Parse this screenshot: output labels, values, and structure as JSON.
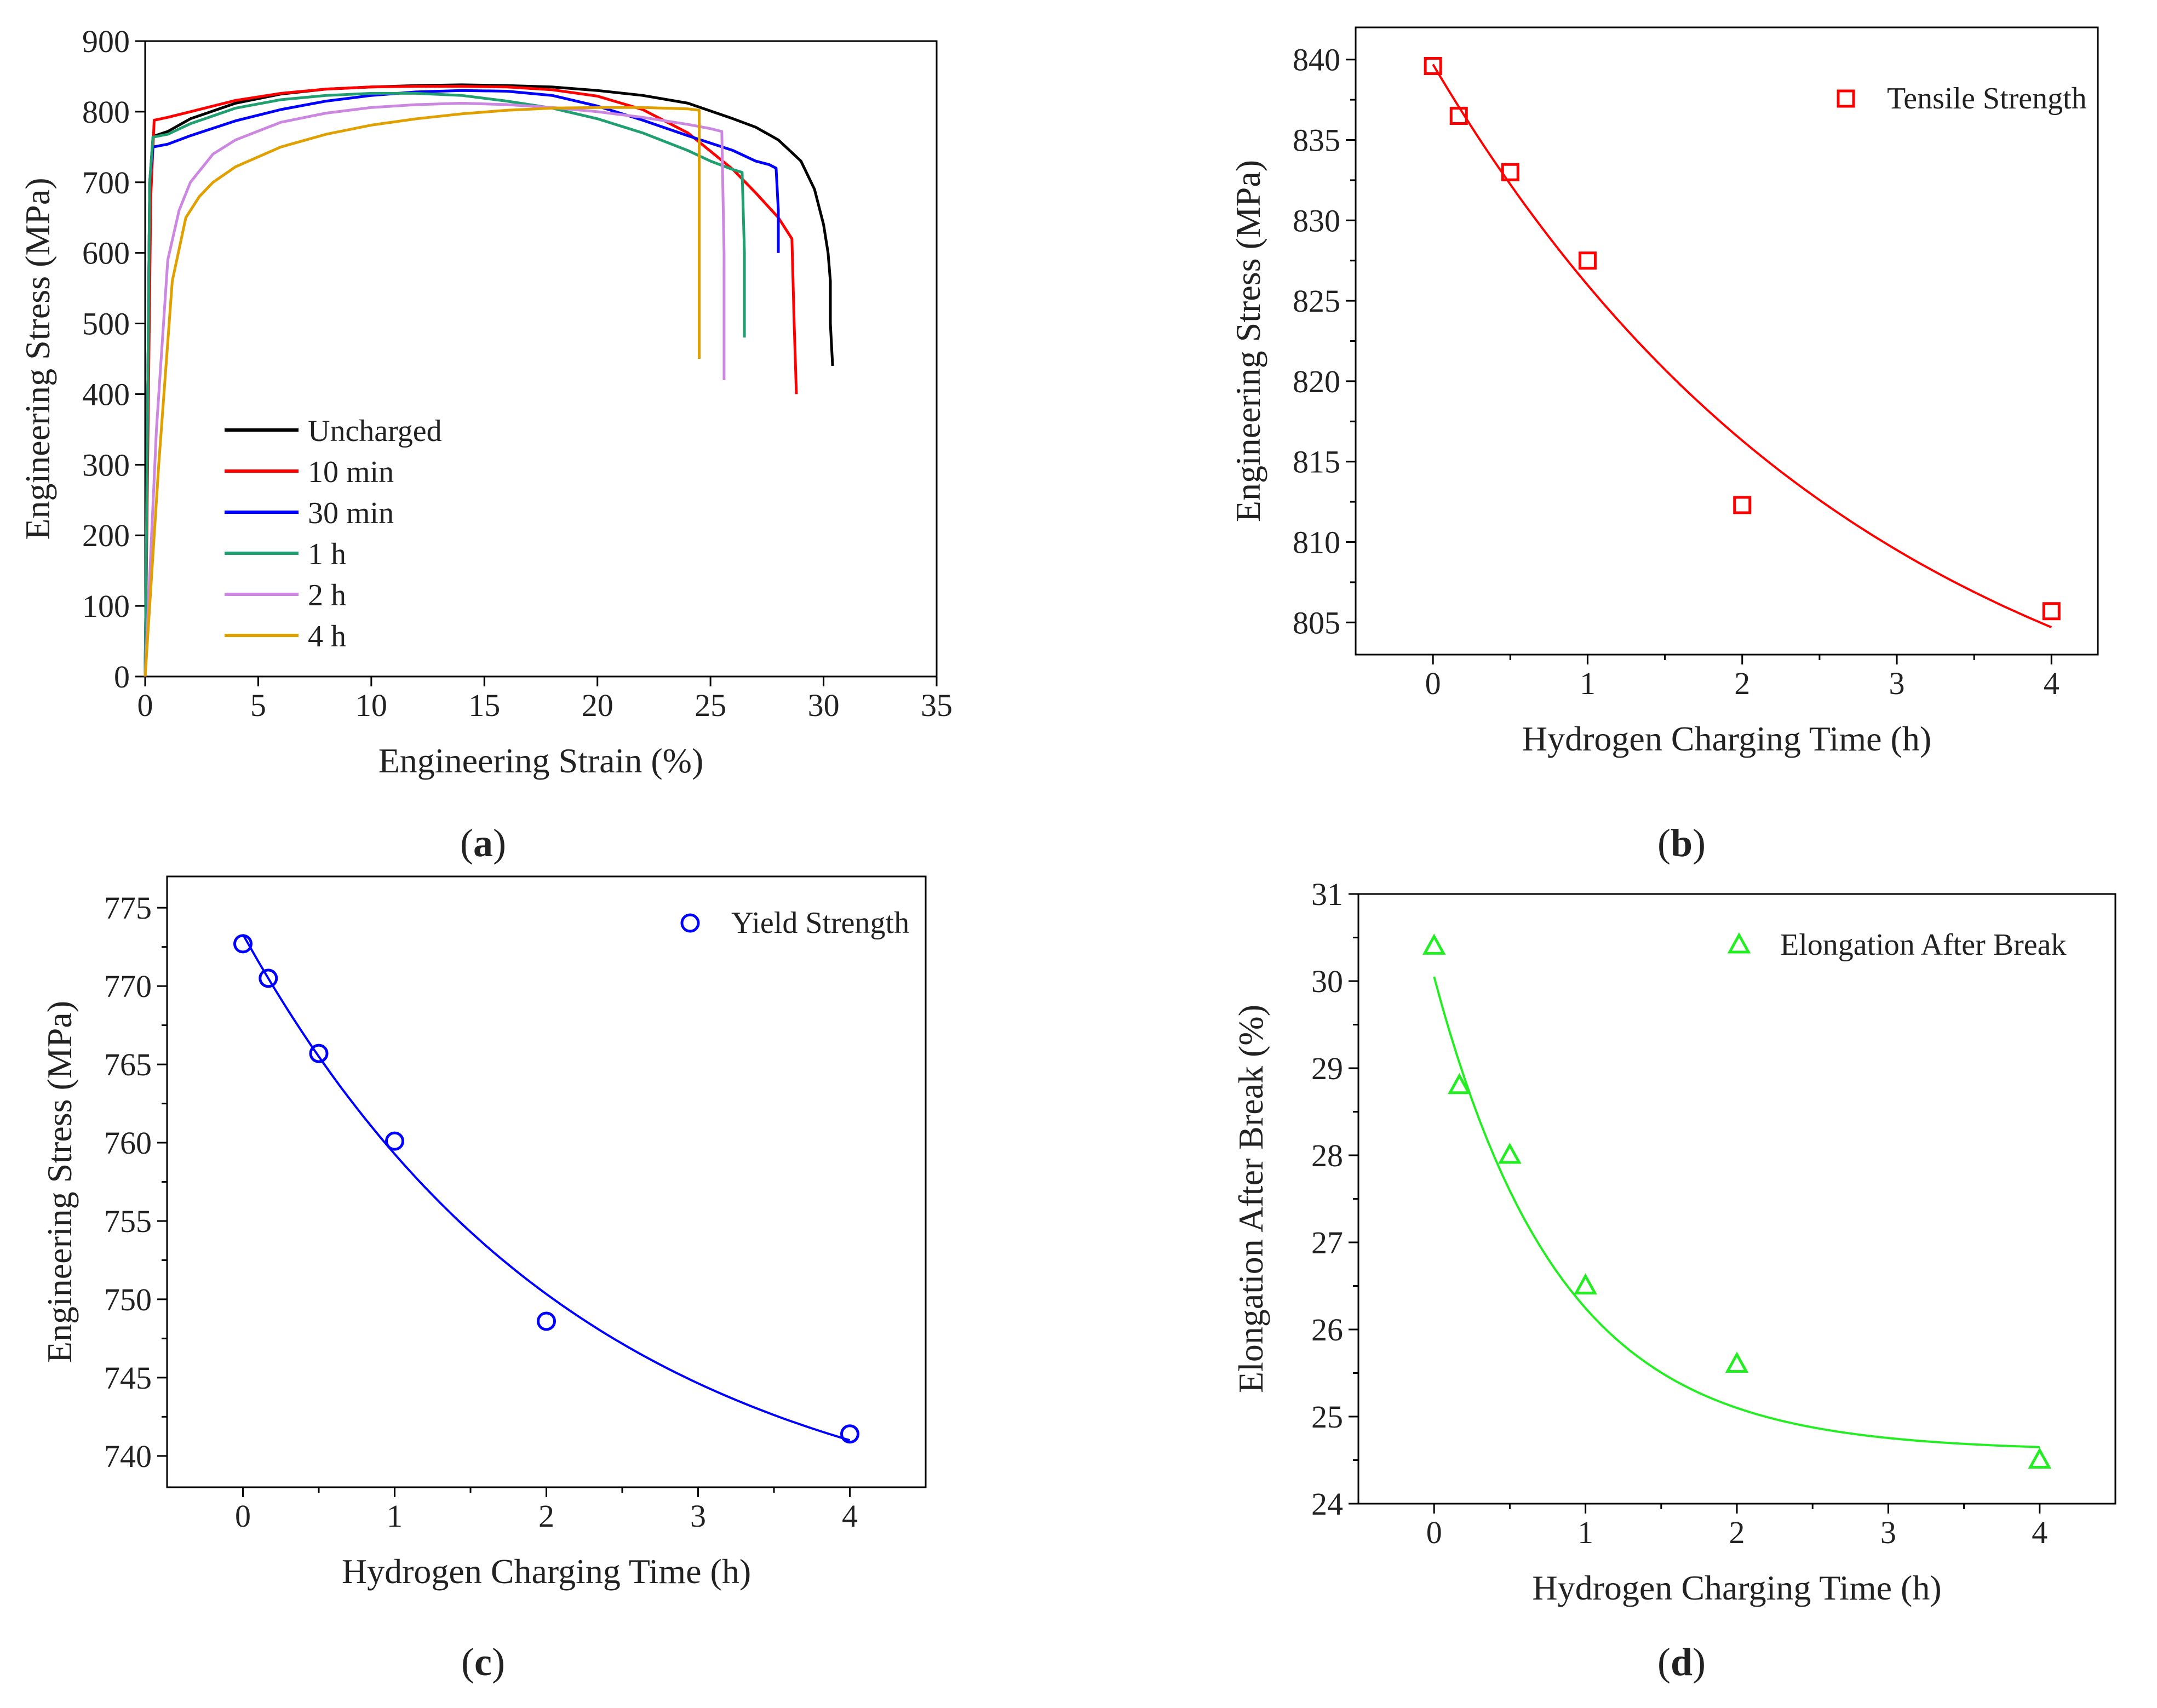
{
  "figure": {
    "panel_labels": {
      "a": "(a)",
      "b": "(b)",
      "c": "(c)",
      "d": "(d)"
    },
    "panel_letters": {
      "a": "a",
      "b": "b",
      "c": "c",
      "d": "d"
    }
  },
  "chart_data": [
    {
      "id": "a",
      "type": "line",
      "title": "",
      "xlabel": "Engineering Strain (%)",
      "ylabel": "Engineering Stress (MPa)",
      "xlim": [
        0,
        35
      ],
      "ylim": [
        0,
        900
      ],
      "xticks": [
        "0",
        "5",
        "10",
        "15",
        "20",
        "25",
        "30",
        "35"
      ],
      "yticks": [
        "0",
        "100",
        "200",
        "300",
        "400",
        "500",
        "600",
        "700",
        "800",
        "900"
      ],
      "legend_position": "bottom-left",
      "series": [
        {
          "name": "Uncharged",
          "color": "#000000",
          "x": [
            0,
            0.2,
            0.35,
            1,
            2,
            4,
            6,
            8,
            10,
            12,
            14,
            16,
            18,
            20,
            22,
            24,
            26,
            27,
            28,
            29,
            29.6,
            30,
            30.2,
            30.3,
            30.3,
            30.4
          ],
          "y": [
            0,
            700,
            765,
            772,
            790,
            812,
            825,
            832,
            835,
            837,
            838,
            837,
            835,
            830,
            823,
            812,
            790,
            778,
            760,
            730,
            690,
            640,
            600,
            560,
            500,
            440
          ]
        },
        {
          "name": "10 min",
          "color": "#ff0000",
          "x": [
            0,
            0.25,
            0.4,
            1,
            2,
            4,
            6,
            8,
            10,
            12,
            14,
            16,
            18,
            20,
            22,
            24,
            26,
            27,
            28,
            28.6,
            28.7,
            28.8
          ],
          "y": [
            0,
            680,
            788,
            792,
            800,
            816,
            826,
            832,
            835,
            836,
            836,
            835,
            831,
            822,
            803,
            770,
            718,
            685,
            650,
            620,
            500,
            400
          ]
        },
        {
          "name": "30 min",
          "color": "#0000ff",
          "x": [
            0,
            0.2,
            0.35,
            1,
            2,
            4,
            6,
            8,
            10,
            12,
            14,
            16,
            18,
            20,
            22,
            24,
            26,
            27,
            27.6,
            27.9,
            28,
            28
          ],
          "y": [
            0,
            700,
            750,
            754,
            766,
            787,
            803,
            815,
            823,
            828,
            830,
            829,
            823,
            808,
            788,
            766,
            745,
            730,
            725,
            720,
            660,
            600
          ]
        },
        {
          "name": "1 h",
          "color": "#20a070",
          "x": [
            0,
            0.2,
            0.35,
            1,
            2,
            4,
            6,
            8,
            10,
            12,
            14,
            16,
            18,
            20,
            22,
            24,
            25,
            26,
            26.4,
            26.5,
            26.5
          ],
          "y": [
            0,
            700,
            764,
            768,
            783,
            805,
            817,
            823,
            826,
            826,
            823,
            815,
            805,
            790,
            770,
            745,
            730,
            718,
            714,
            600,
            480
          ]
        },
        {
          "name": "2 h",
          "color": "#cc88e0",
          "x": [
            0,
            0.5,
            1,
            1.5,
            2,
            3,
            4,
            6,
            8,
            10,
            12,
            14,
            16,
            18,
            20,
            22,
            24,
            25,
            25.5,
            25.6,
            25.6
          ],
          "y": [
            0,
            350,
            590,
            660,
            700,
            740,
            760,
            785,
            798,
            806,
            810,
            812,
            810,
            806,
            800,
            792,
            782,
            776,
            772,
            600,
            420
          ]
        },
        {
          "name": "4 h",
          "color": "#e0a000",
          "x": [
            0,
            0.6,
            1.2,
            1.8,
            2.4,
            3,
            4,
            6,
            8,
            10,
            12,
            14,
            16,
            18,
            20,
            22,
            24,
            24.5,
            24.5,
            24.5
          ],
          "y": [
            0,
            300,
            560,
            650,
            680,
            700,
            722,
            750,
            768,
            781,
            790,
            797,
            802,
            805,
            806,
            806,
            804,
            802,
            600,
            450
          ]
        }
      ]
    },
    {
      "id": "b",
      "type": "scatter",
      "title": "",
      "xlabel": "Hydrogen Charging Time (h)",
      "ylabel": "Engineering Stress (MPa)",
      "xlim": [
        -0.5,
        4.3
      ],
      "ylim": [
        803,
        842
      ],
      "xticks": [
        "0",
        "1",
        "2",
        "3",
        "4"
      ],
      "yticks": [
        "805",
        "810",
        "815",
        "820",
        "825",
        "830",
        "835",
        "840"
      ],
      "legend_position": "top-right",
      "series": [
        {
          "name": "Tensile Strength",
          "color": "#ff0000",
          "marker": "square",
          "x": [
            0,
            0.167,
            0.5,
            1,
            2,
            4
          ],
          "y": [
            839.6,
            836.5,
            833.0,
            827.5,
            812.3,
            805.7
          ]
        }
      ],
      "fit": {
        "color": "#ff0000",
        "x_range": [
          0,
          4
        ],
        "y_start": 839.7,
        "y_end": 804.7,
        "decay": 0.35
      }
    },
    {
      "id": "c",
      "type": "scatter",
      "title": "",
      "xlabel": "Hydrogen Charging Time (h)",
      "ylabel": "Engineering Stress (MPa)",
      "xlim": [
        -0.5,
        4.5
      ],
      "ylim": [
        738,
        777
      ],
      "xticks": [
        "0",
        "1",
        "2",
        "3",
        "4"
      ],
      "yticks": [
        "740",
        "745",
        "750",
        "755",
        "760",
        "765",
        "770",
        "775"
      ],
      "legend_position": "top-right",
      "series": [
        {
          "name": "Yield Strength",
          "color": "#0000ff",
          "marker": "circle",
          "x": [
            0,
            0.167,
            0.5,
            1,
            2,
            4
          ],
          "y": [
            772.7,
            770.5,
            765.7,
            760.1,
            748.6,
            741.4
          ]
        }
      ],
      "fit": {
        "color": "#0000ff",
        "x_range": [
          0,
          4
        ],
        "y_start": 773.3,
        "y_end": 741.0,
        "decay": 0.45
      }
    },
    {
      "id": "d",
      "type": "scatter",
      "title": "",
      "xlabel": "Hydrogen Charging Time (h)",
      "ylabel": "Elongation After Break (%)",
      "xlim": [
        -0.5,
        4.5
      ],
      "ylim": [
        24,
        31
      ],
      "xticks": [
        "0",
        "1",
        "2",
        "3",
        "4"
      ],
      "yticks": [
        "24",
        "25",
        "26",
        "27",
        "28",
        "29",
        "30",
        "31"
      ],
      "legend_position": "top-right",
      "series": [
        {
          "name": "Elongation After Break",
          "color": "#22ee22",
          "marker": "triangle",
          "x": [
            0,
            0.167,
            0.5,
            1,
            2,
            4
          ],
          "y": [
            30.4,
            28.8,
            28.0,
            26.5,
            25.6,
            24.5
          ]
        }
      ],
      "fit": {
        "color": "#22ee22",
        "x_range": [
          0,
          4
        ],
        "y_start": 30.05,
        "y_end": 24.65,
        "decay": 1.2
      }
    }
  ]
}
